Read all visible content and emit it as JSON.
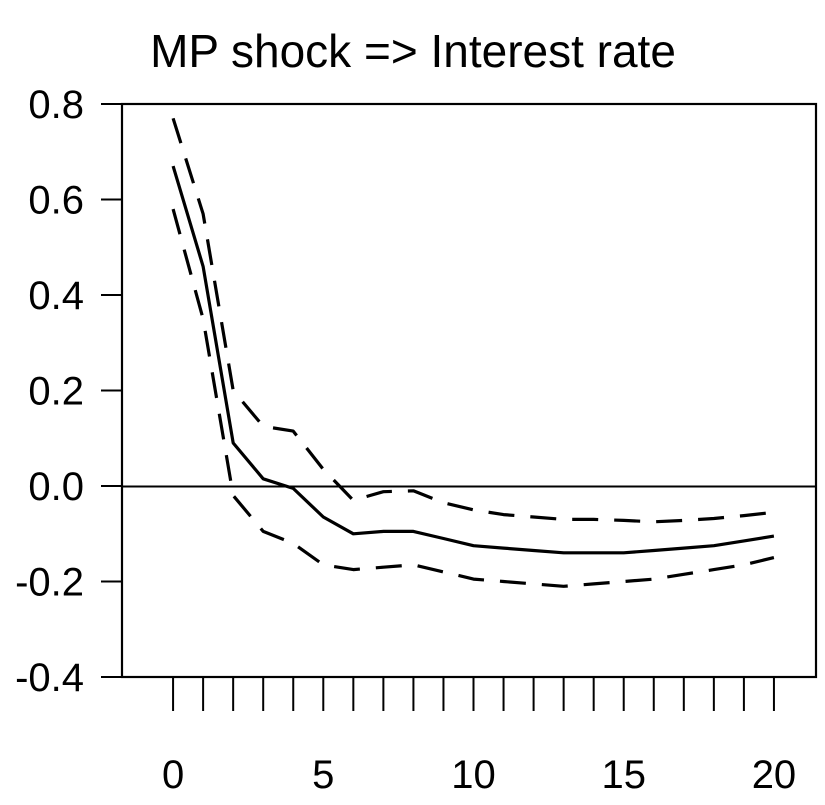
{
  "chart_data": {
    "type": "line",
    "title": "MP shock => Interest rate",
    "xlabel": "",
    "ylabel": "",
    "xlim": [
      -1.7,
      21.4
    ],
    "ylim": [
      -0.4,
      0.8
    ],
    "xticks": [
      0,
      5,
      10,
      15,
      20
    ],
    "xtick_labels": [
      "0",
      "5",
      "10",
      "15",
      "20"
    ],
    "yticks": [
      0.8,
      0.6,
      0.4,
      0.2,
      0.0,
      -0.2,
      -0.4
    ],
    "ytick_labels": [
      "0.8",
      "0.6",
      "0.4",
      "0.2",
      "0.0",
      "-0.2",
      "-0.4"
    ],
    "zero_line": true,
    "grid": false,
    "x": [
      0,
      1,
      2,
      3,
      4,
      5,
      6,
      7,
      8,
      9,
      10,
      11,
      12,
      13,
      14,
      15,
      16,
      17,
      18,
      19,
      20
    ],
    "series": [
      {
        "style": "solid",
        "values": [
          0.67,
          0.46,
          0.09,
          0.015,
          -0.005,
          -0.065,
          -0.1,
          -0.095,
          -0.095,
          -0.11,
          -0.125,
          -0.13,
          -0.135,
          -0.14,
          -0.14,
          -0.14,
          -0.135,
          -0.13,
          -0.125,
          -0.115,
          -0.105
        ]
      },
      {
        "style": "dashed",
        "values": [
          0.77,
          0.57,
          0.2,
          0.125,
          0.115,
          0.035,
          -0.03,
          -0.012,
          -0.01,
          -0.035,
          -0.05,
          -0.06,
          -0.065,
          -0.07,
          -0.07,
          -0.072,
          -0.075,
          -0.072,
          -0.068,
          -0.062,
          -0.055
        ]
      },
      {
        "style": "dashed",
        "values": [
          0.58,
          0.35,
          -0.02,
          -0.095,
          -0.12,
          -0.165,
          -0.175,
          -0.17,
          -0.165,
          -0.18,
          -0.195,
          -0.2,
          -0.205,
          -0.21,
          -0.205,
          -0.2,
          -0.195,
          -0.185,
          -0.175,
          -0.165,
          -0.15
        ]
      }
    ]
  }
}
